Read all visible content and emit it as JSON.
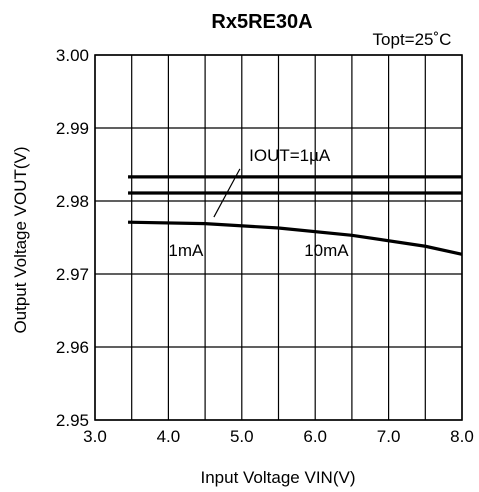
{
  "chart_data": {
    "type": "line",
    "title": "Rx5RE30A",
    "condition": "Topt=25˚C",
    "xlabel": "Input Voltage VIN(V)",
    "ylabel": "Output Voltage VOUT(V)",
    "xlim": [
      3.0,
      8.0
    ],
    "ylim": [
      2.95,
      3.0
    ],
    "x_ticks": [
      "3.0",
      "4.0",
      "5.0",
      "6.0",
      "7.0",
      "8.0"
    ],
    "y_ticks": [
      "3.00",
      "2.99",
      "2.98",
      "2.97",
      "2.96",
      "2.95"
    ],
    "grid": true,
    "series": [
      {
        "name": "IOUT=1µA",
        "x": [
          3.45,
          8.0
        ],
        "y": [
          2.9833,
          2.9833
        ]
      },
      {
        "name": "1mA",
        "x": [
          3.45,
          8.0
        ],
        "y": [
          2.9811,
          2.9811
        ]
      },
      {
        "name": "10mA",
        "x": [
          3.45,
          4.5,
          5.5,
          6.5,
          7.5,
          8.0
        ],
        "y": [
          2.9771,
          2.9769,
          2.9763,
          2.9753,
          2.9738,
          2.9727
        ]
      }
    ],
    "annotations": [
      {
        "text": "IOUT=1µA",
        "label_x": 5.1,
        "label_y": 2.9855,
        "arrow_to_x": 4.62,
        "arrow_to_y": 2.9778
      },
      {
        "text": "1mA",
        "label_x": 4.0,
        "label_y": 2.9725
      },
      {
        "text": "10mA",
        "label_x": 5.85,
        "label_y": 2.9725
      }
    ]
  }
}
